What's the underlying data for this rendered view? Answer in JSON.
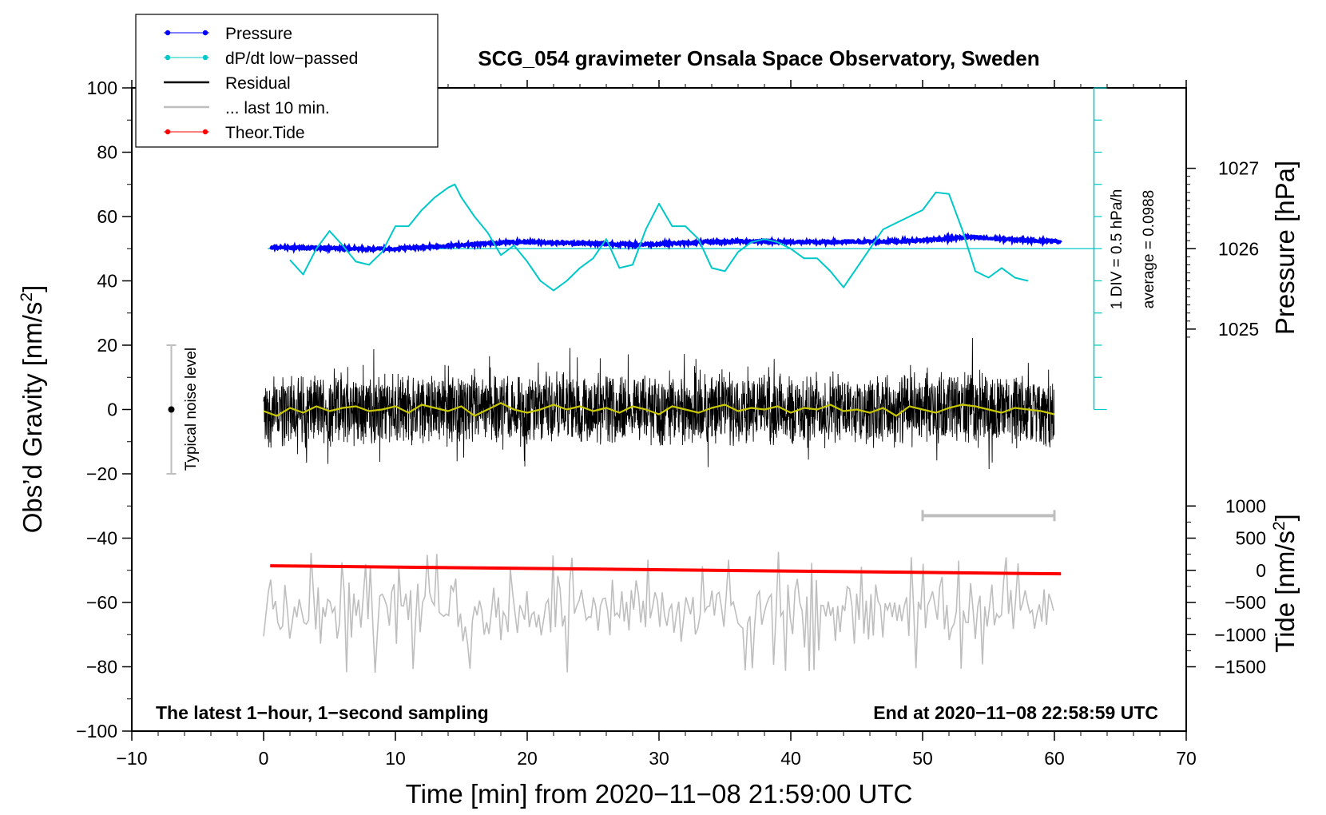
{
  "chart_data": {
    "type": "line",
    "title": "SCG_054 gravimeter Onsala Space Observatory, Sweden",
    "xlabel": "Time [min] from 2020−11−08 21:59:00 UTC",
    "ylabel_left": "Obs’d Gravity [nm/s",
    "ylabel_left_sup": "2",
    "ylabel_left_end": "]",
    "ylabel_pressure": "Pressure [hPa]",
    "ylabel_tide": "Tide [nm/s",
    "ylabel_tide_sup": "2",
    "ylabel_tide_end": "]",
    "xlim": [
      -10,
      70
    ],
    "ylim": [
      -100,
      100
    ],
    "x_ticks": [
      "−10",
      "0",
      "10",
      "20",
      "30",
      "40",
      "50",
      "60",
      "70"
    ],
    "x_tick_values": [
      -10,
      0,
      10,
      20,
      30,
      40,
      50,
      60,
      70
    ],
    "y_ticks": [
      "−100",
      "−80",
      "−60",
      "−40",
      "−20",
      "0",
      "20",
      "40",
      "60",
      "80",
      "100"
    ],
    "y_tick_values": [
      -100,
      -80,
      -60,
      -40,
      -20,
      0,
      20,
      40,
      60,
      80,
      100
    ],
    "pressure_ticks": [
      "1025",
      "1026",
      "1027"
    ],
    "pressure_tick_values": [
      1025,
      1026,
      1027
    ],
    "tide_ticks": [
      "−1500",
      "−1000",
      "−500",
      "0",
      "500",
      "1000"
    ],
    "tide_tick_values": [
      -1500,
      -1000,
      -500,
      0,
      500,
      1000
    ],
    "pressure_to_gravity": {
      "ref_hpa": 1026,
      "ref_y": 50,
      "hpa_per_25": 1
    },
    "tide_to_gravity": {
      "ref_nm": 0,
      "ref_y": -50,
      "nm_per_unit": 50
    },
    "legend": [
      {
        "label": "Pressure",
        "color": "#0000ff",
        "marker": true
      },
      {
        "label": "dP/dt low−passed",
        "color": "#00c8c8",
        "marker": true
      },
      {
        "label": "Residual",
        "color": "#000000",
        "marker": false
      },
      {
        "label": "... last 10 min.",
        "color": "#bebebe",
        "marker": false
      },
      {
        "label": "Theor.Tide",
        "color": "#ff0000",
        "marker": true
      }
    ],
    "footer_left": "The latest 1−hour, 1−second sampling",
    "footer_right": "End at 2020−11−08 22:58:59 UTC",
    "noise_label": "Typical noise level",
    "noise_range": [
      -20,
      20
    ],
    "noise_x": -7,
    "dpdt_scale_label": "1 DIV = 0.5 hPa/h",
    "dpdt_average_label": "average = 0.0988",
    "dpdt_axis_x": 63,
    "dpdt_axis_range": [
      0,
      100
    ],
    "dpdt_axis_divisions": 10,
    "last10_bar": [
      50,
      60
    ],
    "last10_bar_y": -33,
    "series": [
      {
        "name": "Pressure",
        "color": "#0000ff",
        "x": [
          0.5,
          2,
          4,
          6,
          8,
          10,
          12,
          14,
          16,
          18,
          20,
          22,
          24,
          26,
          28,
          30,
          32,
          34,
          36,
          38,
          40,
          42,
          44,
          46,
          48,
          50,
          52,
          53.5,
          55,
          57,
          59,
          60.5
        ],
        "y": [
          50.4,
          50.4,
          50.2,
          50.1,
          49.9,
          50.0,
          50.5,
          50.9,
          51.4,
          51.9,
          52.1,
          51.9,
          51.7,
          51.5,
          51.3,
          51.5,
          51.8,
          52.1,
          52.3,
          52.3,
          52.1,
          52.0,
          52.1,
          52.2,
          52.3,
          52.6,
          53.2,
          53.6,
          53.2,
          52.8,
          52.5,
          52.2
        ]
      },
      {
        "name": "dP/dt low−passed",
        "color": "#00c8c8",
        "x": [
          2,
          3,
          4,
          5,
          6,
          7,
          8,
          9,
          10,
          11,
          12,
          13,
          14,
          14.5,
          15,
          16,
          17,
          18,
          19,
          20,
          21,
          22,
          23,
          24,
          25,
          26,
          27,
          28,
          29,
          30,
          31,
          32,
          33,
          34,
          35,
          36,
          37,
          38,
          39,
          40,
          41,
          42,
          43,
          44,
          45,
          46,
          47,
          48,
          49,
          50,
          51,
          52,
          53,
          54,
          55,
          56,
          57,
          58
        ],
        "y": [
          46.5,
          42,
          50,
          55.5,
          51,
          46,
          45,
          49,
          57,
          57,
          62,
          66,
          69,
          70,
          66,
          60,
          55,
          48,
          51,
          46,
          40,
          37,
          40,
          44,
          47,
          53,
          44,
          45,
          56,
          64,
          57,
          57,
          53,
          44,
          43,
          49,
          52,
          53,
          52,
          50,
          47,
          47,
          43,
          38,
          44,
          50,
          56,
          58,
          60,
          62,
          67.5,
          67,
          56,
          43,
          41,
          44,
          41,
          40
        ]
      },
      {
        "name": "Residual smoothed",
        "color": "#c8c800",
        "x": [
          0,
          1,
          2,
          3,
          4,
          5,
          6,
          7,
          8,
          9,
          10,
          11,
          12,
          13,
          14,
          15,
          16,
          17,
          18,
          19,
          20,
          21,
          22,
          23,
          24,
          25,
          26,
          27,
          28,
          29,
          30,
          31,
          32,
          33,
          34,
          35,
          36,
          37,
          38,
          39,
          40,
          41,
          42,
          43,
          44,
          45,
          46,
          47,
          48,
          49,
          50,
          51,
          52,
          53,
          54,
          55,
          56,
          57,
          58,
          59,
          60
        ],
        "y": [
          -0.5,
          -2,
          0.5,
          -1,
          1,
          -0.5,
          0.5,
          1,
          -0.5,
          0,
          1,
          -1,
          1.5,
          0.5,
          -0.5,
          1,
          -2,
          0,
          2,
          0,
          -1,
          0,
          1.5,
          0,
          1,
          -0.5,
          0.5,
          -1,
          1,
          0,
          -1.5,
          1,
          0,
          -1,
          0.5,
          1.5,
          -0.5,
          0.5,
          0,
          1,
          -1,
          0.5,
          0,
          1.5,
          -0.5,
          0,
          -1,
          0.5,
          -2,
          1,
          0,
          -1,
          0.5,
          1.5,
          1,
          0,
          -1,
          0.5,
          0,
          -0.5,
          -1.5
        ]
      },
      {
        "name": "Theor.Tide",
        "color": "#ff0000",
        "x": [
          0.5,
          60.5
        ],
        "y": [
          -48.6,
          -51.1
        ]
      }
    ]
  }
}
